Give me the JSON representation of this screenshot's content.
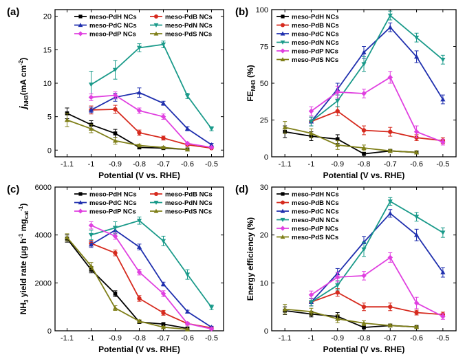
{
  "colors": {
    "meso-PdH NCs": "#000000",
    "meso-PdB NCs": "#d62a1e",
    "meso-PdC NCs": "#1f2fae",
    "meso-PdN NCs": "#1a9a8a",
    "meso-PdP NCs": "#e040e0",
    "meso-PdS NCs": "#7f7f18"
  },
  "chart_data": [
    {
      "type": "line",
      "panel": "(a)",
      "xlabel": "Potential (V vs. RHE)",
      "ylabel_main": "j",
      "ylabel_sub": "NH3",
      "ylabel_unit": "(mA cm",
      "ylabel_sup": "-2",
      "ylabel_close": ")",
      "xlim": [
        -1.15,
        -0.45
      ],
      "ylim": [
        -1,
        21
      ],
      "xticks": [
        -1.1,
        -1.0,
        -0.9,
        -0.8,
        -0.7,
        -0.6,
        -0.5
      ],
      "yticks": [
        0,
        5,
        10,
        15,
        20
      ],
      "legend_cols": 2,
      "series": [
        {
          "name": "meso-PdH NCs",
          "x": [
            -1.1,
            -1.0,
            -0.9,
            -0.8,
            -0.7,
            -0.6
          ],
          "y": [
            5.5,
            3.8,
            2.5,
            0.4,
            0.3,
            0.1
          ],
          "err": [
            0.8,
            0.6,
            0.6,
            0.2,
            0.1,
            0.1
          ]
        },
        {
          "name": "meso-PdB NCs",
          "x": [
            -1.0,
            -0.9,
            -0.8,
            -0.7,
            -0.6,
            -0.5
          ],
          "y": [
            6.0,
            6.1,
            2.6,
            1.8,
            0.8,
            0.3
          ],
          "err": [
            0.6,
            0.6,
            0.4,
            0.3,
            0.2,
            0.1
          ]
        },
        {
          "name": "meso-PdC NCs",
          "x": [
            -1.0,
            -0.9,
            -0.8,
            -0.7,
            -0.6,
            -0.5
          ],
          "y": [
            6.0,
            7.9,
            8.6,
            7.0,
            3.2,
            0.8
          ],
          "err": [
            0.4,
            0.6,
            0.7,
            0.3,
            0.3,
            0.2
          ]
        },
        {
          "name": "meso-PdN NCs",
          "x": [
            -1.0,
            -0.9,
            -0.8,
            -0.7,
            -0.6,
            -0.5
          ],
          "y": [
            9.8,
            12.0,
            15.3,
            15.8,
            8.1,
            3.2
          ],
          "err": [
            2.0,
            1.4,
            0.6,
            0.5,
            0.4,
            0.3
          ]
        },
        {
          "name": "meso-PdP NCs",
          "x": [
            -1.0,
            -0.9,
            -0.8,
            -0.7,
            -0.6,
            -0.5
          ],
          "y": [
            7.9,
            8.2,
            5.9,
            5.0,
            1.0,
            0.4
          ],
          "err": [
            0.5,
            0.5,
            0.4,
            0.4,
            0.2,
            0.1
          ]
        },
        {
          "name": "meso-PdS NCs",
          "x": [
            -1.1,
            -1.0,
            -0.9,
            -0.8,
            -0.7,
            -0.6
          ],
          "y": [
            4.5,
            3.2,
            1.4,
            0.7,
            0.4,
            0.1
          ],
          "err": [
            1.0,
            0.6,
            0.5,
            0.2,
            0.1,
            0.1
          ]
        }
      ]
    },
    {
      "type": "line",
      "panel": "(b)",
      "xlabel": "Potential (V vs. RHE)",
      "ylabel_main": "FE",
      "ylabel_sub": "NH3",
      "ylabel_unit": " (%)",
      "ylabel_sup": "",
      "ylabel_close": "",
      "xlim": [
        -1.15,
        -0.45
      ],
      "ylim": [
        0,
        100
      ],
      "xticks": [
        -1.1,
        -1.0,
        -0.9,
        -0.8,
        -0.7,
        -0.6,
        -0.5
      ],
      "yticks": [
        0,
        25,
        50,
        75,
        100
      ],
      "legend_cols": 1,
      "series": [
        {
          "name": "meso-PdH NCs",
          "x": [
            -1.1,
            -1.0,
            -0.9,
            -0.8,
            -0.7,
            -0.6
          ],
          "y": [
            17,
            14,
            12,
            2,
            4,
            3
          ],
          "err": [
            4,
            3,
            3,
            1,
            1,
            1
          ]
        },
        {
          "name": "meso-PdB NCs",
          "x": [
            -1.0,
            -0.9,
            -0.8,
            -0.7,
            -0.6,
            -0.5
          ],
          "y": [
            24,
            31,
            18,
            17,
            13,
            11
          ],
          "err": [
            3,
            3,
            3,
            3,
            2,
            2
          ]
        },
        {
          "name": "meso-PdC NCs",
          "x": [
            -1.0,
            -0.9,
            -0.8,
            -0.7,
            -0.6,
            -0.5
          ],
          "y": [
            24,
            46,
            71,
            88,
            68,
            39
          ],
          "err": [
            3,
            4,
            4,
            3,
            4,
            3
          ]
        },
        {
          "name": "meso-PdN NCs",
          "x": [
            -1.0,
            -0.9,
            -0.8,
            -0.7,
            -0.6,
            -0.5
          ],
          "y": [
            24,
            38,
            63,
            96,
            81,
            66
          ],
          "err": [
            3,
            4,
            5,
            3,
            3,
            3
          ]
        },
        {
          "name": "meso-PdP NCs",
          "x": [
            -1.0,
            -0.9,
            -0.8,
            -0.7,
            -0.6,
            -0.5
          ],
          "y": [
            31,
            44,
            43,
            54,
            17,
            10
          ],
          "err": [
            3,
            4,
            3,
            4,
            4,
            2
          ]
        },
        {
          "name": "meso-PdS NCs",
          "x": [
            -1.1,
            -1.0,
            -0.9,
            -0.8,
            -0.7,
            -0.6
          ],
          "y": [
            20,
            16,
            8,
            6,
            4,
            3
          ],
          "err": [
            4,
            3,
            3,
            2,
            1,
            1
          ]
        }
      ]
    },
    {
      "type": "line",
      "panel": "(c)",
      "xlabel": "Potential (V vs. RHE)",
      "ylabel_main": "NH",
      "ylabel_sub": "3",
      "ylabel_unit": " yield rate (μg h",
      "ylabel_sup": "-1",
      "ylabel_mid": " mg",
      "ylabel_sub2": "cat",
      "ylabel_sup2": "-1",
      "ylabel_close": ")",
      "xlim": [
        -1.15,
        -0.45
      ],
      "ylim": [
        0,
        6000
      ],
      "xticks": [
        -1.1,
        -1.0,
        -0.9,
        -0.8,
        -0.7,
        -0.6,
        -0.5
      ],
      "yticks": [
        0,
        2000,
        4000,
        6000
      ],
      "legend_cols": 2,
      "series": [
        {
          "name": "meso-PdH NCs",
          "x": [
            -1.1,
            -1.0,
            -0.9,
            -0.8,
            -0.7,
            -0.6
          ],
          "y": [
            3850,
            2550,
            1550,
            370,
            280,
            100
          ],
          "err": [
            150,
            130,
            120,
            60,
            50,
            40
          ]
        },
        {
          "name": "meso-PdB NCs",
          "x": [
            -1.0,
            -0.9,
            -0.8,
            -0.7,
            -0.6,
            -0.5
          ],
          "y": [
            3650,
            3250,
            1350,
            750,
            300,
            120
          ],
          "err": [
            120,
            120,
            120,
            100,
            60,
            40
          ]
        },
        {
          "name": "meso-PdC NCs",
          "x": [
            -1.0,
            -0.9,
            -0.8,
            -0.7,
            -0.6,
            -0.5
          ],
          "y": [
            3600,
            4200,
            3500,
            1950,
            800,
            150
          ],
          "err": [
            120,
            150,
            120,
            80,
            60,
            40
          ]
        },
        {
          "name": "meso-PdN NCs",
          "x": [
            -1.0,
            -0.9,
            -0.8,
            -0.7,
            -0.6,
            -0.5
          ],
          "y": [
            4000,
            4300,
            4600,
            3750,
            2350,
            980
          ],
          "err": [
            200,
            250,
            150,
            200,
            200,
            100
          ]
        },
        {
          "name": "meso-PdP NCs",
          "x": [
            -1.0,
            -0.9,
            -0.8,
            -0.7,
            -0.6,
            -0.5
          ],
          "y": [
            4400,
            3950,
            2450,
            1550,
            300,
            80
          ],
          "err": [
            150,
            130,
            120,
            120,
            60,
            40
          ]
        },
        {
          "name": "meso-PdS NCs",
          "x": [
            -1.1,
            -1.0,
            -0.9,
            -0.8,
            -0.7,
            -0.6
          ],
          "y": [
            3900,
            2700,
            950,
            400,
            150,
            60
          ],
          "err": [
            150,
            150,
            100,
            60,
            40,
            30
          ]
        }
      ]
    },
    {
      "type": "line",
      "panel": "(d)",
      "xlabel": "Potential (V vs. RHE)",
      "ylabel_main": "Energy efficiency (%)",
      "ylabel_sub": "",
      "ylabel_unit": "",
      "ylabel_sup": "",
      "ylabel_close": "",
      "xlim": [
        -1.15,
        -0.45
      ],
      "ylim": [
        0,
        30
      ],
      "xticks": [
        -1.1,
        -1.0,
        -0.9,
        -0.8,
        -0.7,
        -0.6,
        -0.5
      ],
      "yticks": [
        0,
        10,
        20,
        30
      ],
      "legend_cols": 1,
      "series": [
        {
          "name": "meso-PdH NCs",
          "x": [
            -1.1,
            -1.0,
            -0.9,
            -0.8,
            -0.7,
            -0.6
          ],
          "y": [
            4.2,
            3.5,
            3.0,
            0.7,
            1.1,
            0.8
          ],
          "err": [
            0.8,
            0.6,
            0.8,
            0.3,
            0.3,
            0.2
          ]
        },
        {
          "name": "meso-PdB NCs",
          "x": [
            -1.0,
            -0.9,
            -0.8,
            -0.7,
            -0.6,
            -0.5
          ],
          "y": [
            6.0,
            8.0,
            5.0,
            5.0,
            3.8,
            3.4
          ],
          "err": [
            0.8,
            0.8,
            0.8,
            0.8,
            0.5,
            0.5
          ]
        },
        {
          "name": "meso-PdC NCs",
          "x": [
            -1.0,
            -0.9,
            -0.8,
            -0.7,
            -0.6,
            -0.5
          ],
          "y": [
            6.0,
            12.0,
            18.5,
            24.5,
            20.0,
            12.2
          ],
          "err": [
            0.8,
            1.0,
            1.2,
            0.8,
            1.2,
            1.0
          ]
        },
        {
          "name": "meso-PdN NCs",
          "x": [
            -1.0,
            -0.9,
            -0.8,
            -0.7,
            -0.6,
            -0.5
          ],
          "y": [
            6.0,
            9.5,
            17.0,
            27.0,
            23.8,
            20.5
          ],
          "err": [
            0.8,
            1.0,
            1.5,
            0.8,
            0.9,
            1.0
          ]
        },
        {
          "name": "meso-PdP NCs",
          "x": [
            -1.0,
            -0.9,
            -0.8,
            -0.7,
            -0.6,
            -0.5
          ],
          "y": [
            7.5,
            11.2,
            11.5,
            15.3,
            5.8,
            3.0
          ],
          "err": [
            0.8,
            1.0,
            0.9,
            1.0,
            1.2,
            0.6
          ]
        },
        {
          "name": "meso-PdS NCs",
          "x": [
            -1.1,
            -1.0,
            -0.9,
            -0.8,
            -0.7,
            -0.6
          ],
          "y": [
            4.5,
            4.0,
            2.5,
            1.6,
            1.1,
            0.8
          ],
          "err": [
            1.0,
            0.7,
            0.8,
            0.5,
            0.3,
            0.2
          ]
        }
      ]
    }
  ]
}
